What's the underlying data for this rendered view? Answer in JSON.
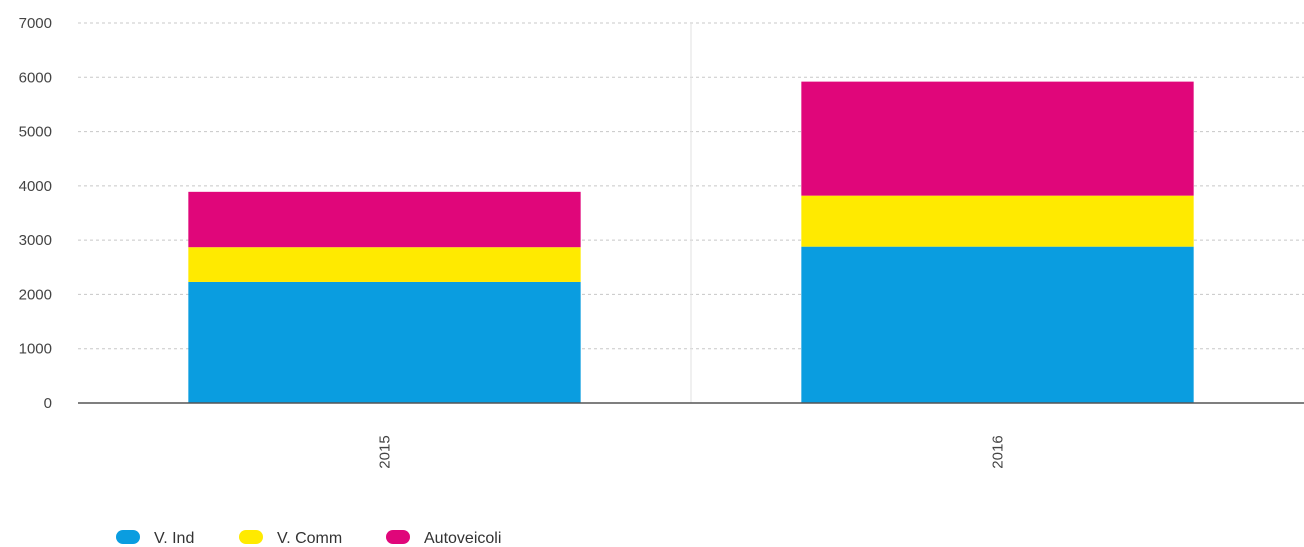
{
  "chart_data": {
    "type": "bar",
    "stacked": true,
    "categories": [
      "2015",
      "2016"
    ],
    "series": [
      {
        "name": "V. Ind",
        "color": "#0a9de0",
        "values": [
          2230,
          2880
        ]
      },
      {
        "name": "V. Comm",
        "color": "#ffea00",
        "values": [
          640,
          940
        ]
      },
      {
        "name": "Autoveicoli",
        "color": "#e0067a",
        "values": [
          1020,
          2100
        ]
      }
    ],
    "ylim": [
      0,
      7000
    ],
    "yticks": [
      "0",
      "1000",
      "2000",
      "3000",
      "4000",
      "5000",
      "6000",
      "7000"
    ],
    "xlabel": "",
    "ylabel": "",
    "title": "",
    "grid": true,
    "legend_position": "bottom-left"
  }
}
